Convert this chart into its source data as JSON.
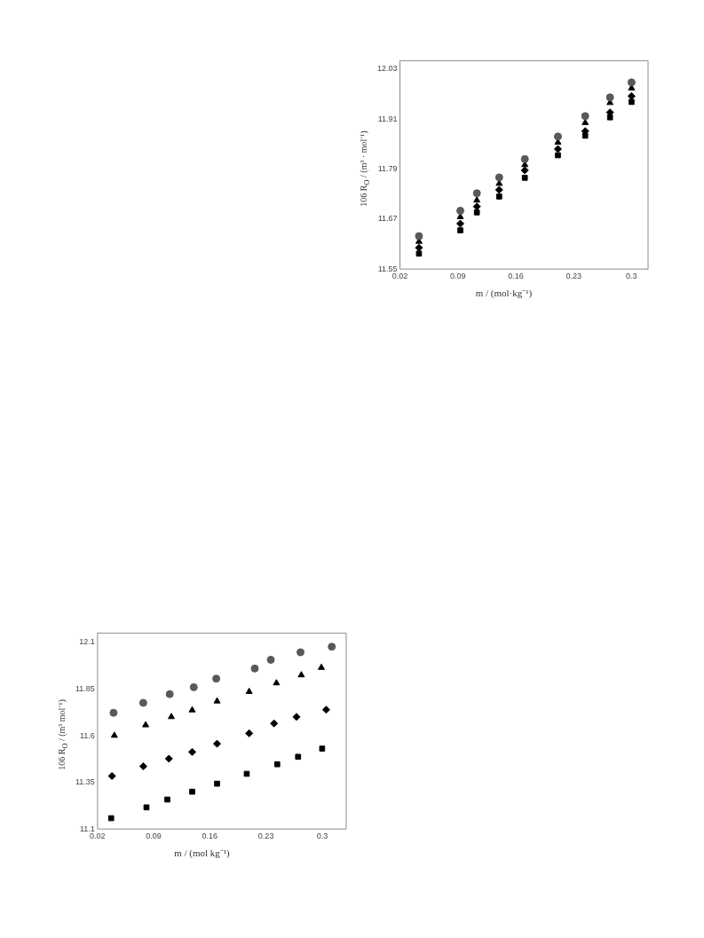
{
  "chart_data": [
    {
      "type": "scatter",
      "xlabel": "m / (mol·kg⁻¹)",
      "ylabel": "106 R$_{O}$ / (m³ · mol⁻¹)",
      "xlim": [
        0.02,
        0.32
      ],
      "xticks": [
        0.02,
        0.09,
        0.16,
        0.23,
        0.3
      ],
      "ylim": [
        11.55,
        12.05
      ],
      "yticks": [
        11.55,
        11.67,
        11.79,
        11.91,
        12.03
      ],
      "grid": false,
      "legend": false,
      "x": [
        0.043,
        0.093,
        0.113,
        0.14,
        0.171,
        0.211,
        0.244,
        0.274,
        0.3
      ],
      "series": [
        {
          "color": "#595959",
          "marker": "circle",
          "values": [
            11.629,
            11.69,
            11.732,
            11.77,
            11.814,
            11.868,
            11.917,
            11.962,
            11.998
          ]
        },
        {
          "color": "#000000",
          "marker": "triangle",
          "values": [
            11.616,
            11.675,
            11.715,
            11.755,
            11.8,
            11.854,
            11.901,
            11.949,
            11.984
          ]
        },
        {
          "color": "#000000",
          "marker": "diamond",
          "values": [
            11.601,
            11.659,
            11.7,
            11.74,
            11.787,
            11.838,
            11.881,
            11.926,
            11.965
          ]
        },
        {
          "color": "#000000",
          "marker": "square",
          "values": [
            11.587,
            11.643,
            11.686,
            11.724,
            11.769,
            11.823,
            11.87,
            11.914,
            11.951
          ]
        }
      ]
    },
    {
      "type": "scatter",
      "xlabel": "m / (mol kg⁻¹)",
      "ylabel": "106 R$_{O}$ / (m³ mol⁻¹)",
      "xlim": [
        0.02,
        0.33
      ],
      "xticks": [
        0.02,
        0.09,
        0.16,
        0.23,
        0.3
      ],
      "ylim": [
        11.1,
        12.15
      ],
      "yticks": [
        11.1,
        11.35,
        11.6,
        11.85,
        12.1
      ],
      "grid": false,
      "legend": false,
      "series": [
        {
          "color": "#595959",
          "marker": "circle",
          "x": [
            0.04,
            0.077,
            0.11,
            0.14,
            0.168,
            0.216,
            0.236,
            0.273,
            0.312
          ],
          "values": [
            11.723,
            11.776,
            11.823,
            11.86,
            11.906,
            11.96,
            12.007,
            12.047,
            12.077
          ]
        },
        {
          "color": "#000000",
          "marker": "triangle",
          "x": [
            0.041,
            0.08,
            0.112,
            0.138,
            0.169,
            0.209,
            0.243,
            0.274,
            0.299
          ],
          "values": [
            11.601,
            11.657,
            11.701,
            11.737,
            11.785,
            11.836,
            11.882,
            11.925,
            11.965
          ]
        },
        {
          "color": "#000000",
          "marker": "diamond",
          "x": [
            0.038,
            0.077,
            0.109,
            0.138,
            0.169,
            0.209,
            0.24,
            0.268,
            0.305
          ],
          "values": [
            11.384,
            11.436,
            11.477,
            11.513,
            11.557,
            11.613,
            11.666,
            11.701,
            11.739
          ]
        },
        {
          "color": "#000000",
          "marker": "square",
          "x": [
            0.037,
            0.081,
            0.107,
            0.138,
            0.169,
            0.206,
            0.244,
            0.27,
            0.3
          ],
          "values": [
            11.158,
            11.216,
            11.258,
            11.3,
            11.343,
            11.396,
            11.447,
            11.487,
            11.531
          ]
        }
      ]
    }
  ]
}
